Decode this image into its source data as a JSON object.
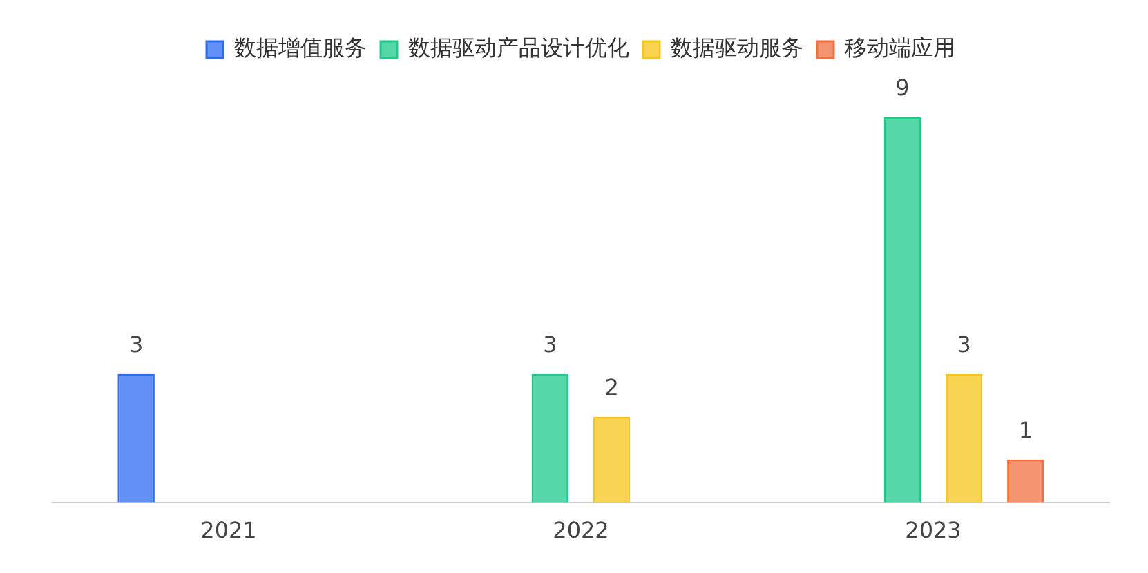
{
  "chart_data": {
    "type": "bar",
    "categories": [
      "2021",
      "2022",
      "2023"
    ],
    "series": [
      {
        "name": "数据增值服务",
        "color": "#2f6bf0",
        "values": [
          3,
          null,
          null
        ]
      },
      {
        "name": "数据驱动产品设计优化",
        "color": "#1ec98a",
        "values": [
          null,
          3,
          9
        ]
      },
      {
        "name": "数据驱动服务",
        "color": "#f5c518",
        "values": [
          null,
          2,
          3
        ]
      },
      {
        "name": "移动端应用",
        "color": "#f07040",
        "values": [
          null,
          null,
          1
        ]
      }
    ],
    "data_labels": true,
    "legend": "top",
    "grid": false
  }
}
